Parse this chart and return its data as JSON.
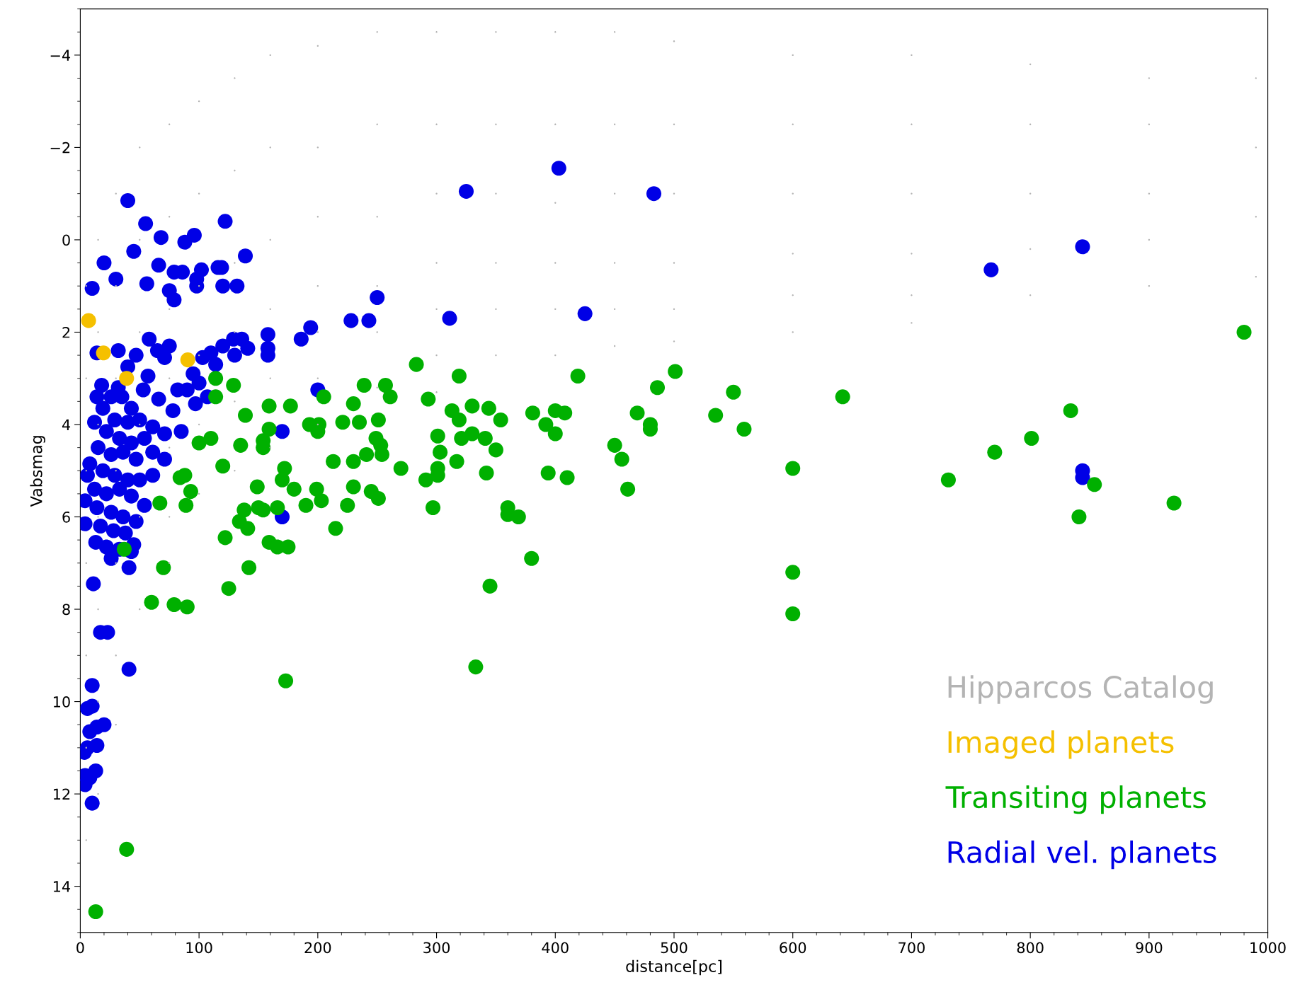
{
  "chart_data": {
    "type": "scatter",
    "xlabel": "distance[pc]",
    "ylabel": "Vabsmag",
    "xlim": [
      0,
      1000
    ],
    "xticks": [
      0,
      100,
      200,
      300,
      400,
      500,
      600,
      700,
      800,
      900,
      1000
    ],
    "ylim": [
      15,
      -5
    ],
    "yticks": [
      {
        "value": -4,
        "label": "−4"
      },
      {
        "value": -2,
        "label": "−2"
      },
      0,
      2,
      4,
      6,
      8,
      10,
      12,
      14
    ],
    "grid": false,
    "legend": "bottom right",
    "marker": "circle",
    "series": [
      {
        "name": "Hipparcos Catalog",
        "color": "#b4b4b4",
        "x": [
          5,
          5,
          5,
          5,
          5,
          5,
          5,
          15,
          15,
          15,
          15,
          15,
          15,
          15,
          30,
          30,
          30,
          30,
          30,
          30,
          30,
          50,
          50,
          50,
          50,
          50,
          50,
          75,
          75,
          75,
          75,
          75,
          75,
          75,
          100,
          100,
          100,
          100,
          100,
          100,
          130,
          130,
          130,
          130,
          130,
          130,
          160,
          160,
          160,
          160,
          160,
          160,
          200,
          200,
          200,
          200,
          200,
          200,
          200,
          250,
          250,
          250,
          250,
          250,
          250,
          300,
          300,
          300,
          300,
          300,
          300,
          300,
          350,
          350,
          350,
          350,
          350,
          350,
          400,
          400,
          400,
          400,
          400,
          400,
          450,
          450,
          450,
          450,
          450,
          450,
          500,
          500,
          500,
          500,
          500,
          500,
          600,
          600,
          600,
          600,
          600,
          600,
          700,
          700,
          700,
          700,
          700,
          700,
          800,
          800,
          800,
          800,
          800,
          900,
          900,
          900,
          900,
          900,
          990,
          990,
          990,
          990
        ],
        "values": [
          1,
          3,
          5,
          7,
          9,
          11,
          13,
          0,
          2,
          4,
          6,
          8,
          10,
          12,
          -1,
          1,
          3,
          5,
          7,
          9,
          10.5,
          -2,
          0,
          2,
          4,
          6,
          8,
          -2.5,
          -0.5,
          1.5,
          3,
          4.5,
          6,
          7,
          -3,
          -1,
          1,
          2.5,
          4,
          5.5,
          -3.5,
          -1.5,
          0.5,
          2,
          3.5,
          5,
          -4,
          -2,
          0,
          1.5,
          3,
          4.5,
          -4.2,
          -2,
          -0.5,
          1,
          2,
          3,
          4,
          -4.5,
          -2.5,
          -0.5,
          1,
          2,
          3.2,
          -4.5,
          -2.5,
          -1,
          0.5,
          1.5,
          2.5,
          3.3,
          -4.5,
          -2.5,
          -1,
          0.5,
          1.5,
          2.5,
          -4.5,
          -2.5,
          -0.8,
          0.5,
          1.5,
          2.5,
          -4.5,
          -2.5,
          -1,
          0.5,
          1.5,
          2.3,
          -4.3,
          -2.5,
          -1,
          0.5,
          1.5,
          2.2,
          -4,
          -2.5,
          -1,
          0.3,
          1.2,
          2,
          -4,
          -2.5,
          -1,
          0.3,
          1.2,
          1.8,
          -3.8,
          -2.5,
          -1,
          0.2,
          1.2,
          -3.5,
          -2.5,
          -1,
          0,
          1,
          -3.5,
          -2,
          -0.5,
          0.8
        ]
      },
      {
        "name": "Imaged planets",
        "color": "#f5c000",
        "x": [
          7,
          19.5,
          39,
          90.5
        ],
        "values": [
          1.75,
          2.45,
          3.0,
          2.6
        ]
      },
      {
        "name": "Transiting planets",
        "color": "#00b000",
        "x": [
          980,
          642,
          834,
          801,
          770,
          731,
          854,
          921,
          841,
          600,
          600,
          600,
          535,
          550,
          559,
          501,
          486,
          469,
          480,
          480,
          450,
          456,
          461,
          419,
          400,
          408,
          392,
          400,
          381,
          394,
          410,
          380,
          283,
          319,
          293,
          313,
          330,
          344,
          354,
          319,
          301,
          330,
          321,
          341,
          350,
          303,
          317,
          301,
          301,
          342,
          291,
          297,
          360,
          360,
          369,
          345,
          333,
          257,
          239,
          261,
          230,
          139,
          159,
          177,
          205,
          221,
          235,
          251,
          193,
          201,
          200,
          249,
          253,
          254,
          241,
          213,
          230,
          270,
          230,
          245,
          251,
          199,
          203,
          190,
          225,
          215,
          159,
          154,
          154,
          135,
          120,
          172,
          170,
          180,
          149,
          150,
          154,
          166,
          138,
          134,
          141,
          122,
          159,
          166,
          175,
          142,
          125,
          173,
          114,
          129,
          114,
          100,
          110,
          84,
          88,
          93,
          89,
          67,
          70,
          60,
          79,
          90,
          37,
          39,
          13
        ],
        "values": [
          2.0,
          3.4,
          3.7,
          4.3,
          4.6,
          5.2,
          5.3,
          5.7,
          6.0,
          4.95,
          7.2,
          8.1,
          3.8,
          3.3,
          4.1,
          2.85,
          3.2,
          3.75,
          4.0,
          4.1,
          4.45,
          4.75,
          5.4,
          2.95,
          3.7,
          3.75,
          4.0,
          4.2,
          3.75,
          5.05,
          5.15,
          6.9,
          2.7,
          2.95,
          3.45,
          3.7,
          3.6,
          3.65,
          3.9,
          3.9,
          4.25,
          4.2,
          4.3,
          4.3,
          4.55,
          4.6,
          4.8,
          4.95,
          5.1,
          5.05,
          5.2,
          5.8,
          5.8,
          5.95,
          6.0,
          7.5,
          9.25,
          3.15,
          3.15,
          3.4,
          3.55,
          3.8,
          3.6,
          3.6,
          3.4,
          3.95,
          3.95,
          3.9,
          4.0,
          4.0,
          4.15,
          4.3,
          4.45,
          4.65,
          4.65,
          4.8,
          4.8,
          4.95,
          5.35,
          5.45,
          5.6,
          5.4,
          5.65,
          5.75,
          5.75,
          6.25,
          4.1,
          4.35,
          4.5,
          4.45,
          4.9,
          4.95,
          5.2,
          5.4,
          5.35,
          5.8,
          5.85,
          5.8,
          5.85,
          6.1,
          6.25,
          6.45,
          6.55,
          6.65,
          6.65,
          7.1,
          7.55,
          9.55,
          3.0,
          3.15,
          3.4,
          4.4,
          4.3,
          5.15,
          5.1,
          5.45,
          5.75,
          5.7,
          7.1,
          7.85,
          7.9,
          7.95,
          6.7,
          13.2,
          14.55
        ]
      },
      {
        "name": "Radial vel. planets",
        "color": "#0000e6",
        "x": [
          403,
          325,
          483,
          844,
          767,
          425,
          311,
          250,
          228,
          243,
          194,
          186,
          158,
          158,
          158,
          200,
          170,
          170,
          844,
          844,
          40,
          122,
          55,
          45,
          68,
          96,
          88,
          20,
          139,
          30,
          10,
          56,
          66,
          79,
          86,
          102,
          98,
          98,
          116,
          119,
          120,
          132,
          75,
          79,
          14,
          32,
          47,
          40,
          32,
          58,
          65,
          75,
          71,
          103,
          110,
          120,
          129,
          136,
          130,
          141,
          114,
          95,
          100,
          90,
          82,
          107,
          97,
          78,
          66,
          57,
          53,
          18,
          14,
          19,
          12,
          26,
          35,
          43,
          29,
          40,
          50,
          61,
          71,
          85,
          22,
          33,
          43,
          54,
          15,
          26,
          36,
          47,
          61,
          71,
          8,
          6,
          19,
          29,
          40,
          50,
          61,
          12,
          22,
          33,
          43,
          54,
          4,
          14,
          26,
          36,
          47,
          4,
          17,
          28,
          38,
          13,
          22,
          33,
          43,
          26,
          41,
          45,
          11,
          17,
          23,
          41,
          10,
          6,
          10,
          8,
          14,
          20,
          6,
          14,
          3.5,
          4,
          13,
          8,
          4,
          10
        ],
        "values": [
          -1.55,
          -1.05,
          -1.0,
          0.15,
          0.65,
          1.6,
          1.7,
          1.25,
          1.75,
          1.75,
          1.9,
          2.15,
          2.05,
          2.35,
          2.5,
          3.25,
          4.15,
          6.0,
          5.0,
          5.15,
          -0.85,
          -0.4,
          -0.35,
          0.25,
          -0.05,
          -0.1,
          0.05,
          0.5,
          0.35,
          0.85,
          1.05,
          0.95,
          0.55,
          0.7,
          0.7,
          0.65,
          0.85,
          1.0,
          0.6,
          0.6,
          1.0,
          1.0,
          1.1,
          1.3,
          2.45,
          2.4,
          2.5,
          2.75,
          3.2,
          2.15,
          2.4,
          2.3,
          2.55,
          2.55,
          2.45,
          2.3,
          2.15,
          2.15,
          2.5,
          2.35,
          2.7,
          2.9,
          3.1,
          3.25,
          3.25,
          3.4,
          3.55,
          3.7,
          3.45,
          2.95,
          3.25,
          3.15,
          3.4,
          3.65,
          3.95,
          3.4,
          3.4,
          3.65,
          3.9,
          3.95,
          3.9,
          4.05,
          4.2,
          4.15,
          4.15,
          4.3,
          4.4,
          4.3,
          4.5,
          4.65,
          4.6,
          4.75,
          4.6,
          4.75,
          4.85,
          5.1,
          5.0,
          5.1,
          5.2,
          5.2,
          5.1,
          5.4,
          5.5,
          5.4,
          5.55,
          5.75,
          5.65,
          5.8,
          5.9,
          6.0,
          6.1,
          6.15,
          6.2,
          6.3,
          6.35,
          6.55,
          6.65,
          6.7,
          6.75,
          6.9,
          7.1,
          6.6,
          7.45,
          8.5,
          8.5,
          9.3,
          9.65,
          10.15,
          10.1,
          10.65,
          10.55,
          10.5,
          11.0,
          10.95,
          11.1,
          11.6,
          11.5,
          11.65,
          11.8,
          12.2
        ]
      }
    ]
  }
}
